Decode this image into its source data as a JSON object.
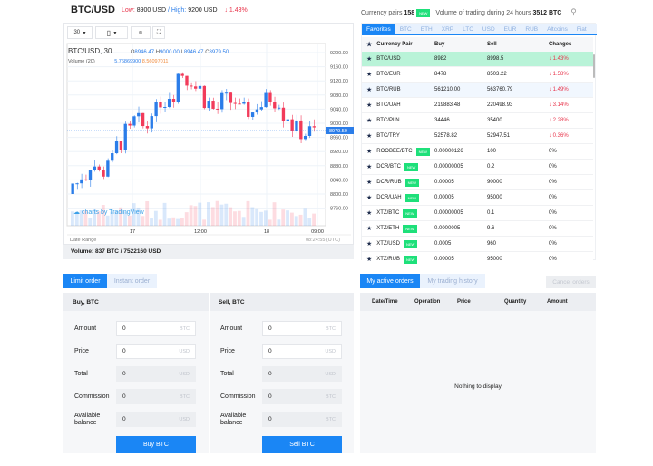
{
  "header": {
    "pair": "BTC/USD",
    "low_label": "Low:",
    "low": "8900 USD",
    "sep": "/",
    "high_label": "High:",
    "high": "9200 USD",
    "change": "↓ 1.43%"
  },
  "top_right": {
    "pairs_label": "Currency pairs",
    "pairs_count": "158",
    "new_badge": "NEW",
    "volume_label": "Volume of trading during 24 hours",
    "volume": "3512 BTC",
    "search_icon": "search-icon"
  },
  "chart": {
    "toolbar": {
      "interval": "30",
      "interval_arrow": "▾",
      "candle_icon": "candle-icon",
      "type_arrow": "▾",
      "indicators_icon": "indicators-icon",
      "fullscreen_icon": "fullscreen-icon"
    },
    "legend_title": "BTC/USD, 30",
    "ohlc": {
      "o_label": "O",
      "o": "8946.47",
      "h_label": "H",
      "h": "9000.00",
      "l_label": "L",
      "l": "8946.47",
      "c_label": "C",
      "c": "8979.50"
    },
    "volume_label": "Volume (20)",
    "volume_v1": "5.76869900",
    "volume_v2": "8.56097011",
    "price_ticks": [
      "9200.00",
      "9160.00",
      "9120.00",
      "9080.00",
      "9040.00",
      "9000.00",
      "8960.00",
      "8920.00",
      "8880.00",
      "8840.00",
      "8800.00",
      "8760.00"
    ],
    "current_price": "8979.50",
    "time_ticks": [
      "17",
      "12:00",
      "18",
      "09:00"
    ],
    "watermark": "charts by TradingView",
    "date_range": "Date Range",
    "clock": "08:24:55 (UTC)",
    "colors": {
      "up": "#2b7de9",
      "down": "#f23b5a"
    }
  },
  "volume_summary": "Volume: 837 BTC / 7522160 USD",
  "order_tabs": [
    "Limit order",
    "Instant order"
  ],
  "buy": {
    "title": "Buy, BTC",
    "fields": [
      {
        "label": "Amount",
        "value": "0",
        "unit": "BTC"
      },
      {
        "label": "Price",
        "value": "0",
        "unit": "USD"
      },
      {
        "label": "Total",
        "value": "0",
        "unit": "USD"
      },
      {
        "label": "Commission",
        "value": "0",
        "unit": "BTC"
      },
      {
        "label": "Available balance",
        "value": "0",
        "unit": "USD"
      }
    ],
    "button": "Buy BTC"
  },
  "sell": {
    "title": "Sell, BTC",
    "fields": [
      {
        "label": "Amount",
        "value": "0",
        "unit": "BTC"
      },
      {
        "label": "Price",
        "value": "0",
        "unit": "USD"
      },
      {
        "label": "Total",
        "value": "0",
        "unit": "USD"
      },
      {
        "label": "Commission",
        "value": "0",
        "unit": "BTC"
      },
      {
        "label": "Available balance",
        "value": "0",
        "unit": "BTC"
      }
    ],
    "button": "Sell BTC"
  },
  "market": {
    "tabs": [
      "Favorites",
      "BTC",
      "ETH",
      "XRP",
      "LTC",
      "USD",
      "EUR",
      "RUB",
      "Altcoins",
      "Fiat"
    ],
    "columns": [
      "Currency Pair",
      "Buy",
      "Sell",
      "Changes"
    ],
    "rows": [
      {
        "pair": "BTC/USD",
        "buy": "8982",
        "sell": "8998.5",
        "change": "↓ 1.43%",
        "neg": true,
        "new": false
      },
      {
        "pair": "BTC/EUR",
        "buy": "8478",
        "sell": "8503.22",
        "change": "↓ 1.58%",
        "neg": true,
        "new": false
      },
      {
        "pair": "BTC/RUB",
        "buy": "561210.00",
        "sell": "563760.79",
        "change": "↓ 1.49%",
        "neg": true,
        "new": false
      },
      {
        "pair": "BTC/UAH",
        "buy": "219883.48",
        "sell": "220498.93",
        "change": "↓ 3.14%",
        "neg": true,
        "new": false
      },
      {
        "pair": "BTC/PLN",
        "buy": "34446",
        "sell": "35400",
        "change": "↓ 2.28%",
        "neg": true,
        "new": false
      },
      {
        "pair": "BTC/TRY",
        "buy": "52578.82",
        "sell": "52947.51",
        "change": "↓ 0.36%",
        "neg": true,
        "new": false
      },
      {
        "pair": "ROOBEE/BTC",
        "buy": "0.00000126",
        "sell": "100",
        "change": "0%",
        "neg": false,
        "new": true
      },
      {
        "pair": "DCR/BTC",
        "buy": "0.00000005",
        "sell": "0.2",
        "change": "0%",
        "neg": false,
        "new": true
      },
      {
        "pair": "DCR/RUB",
        "buy": "0.00005",
        "sell": "90000",
        "change": "0%",
        "neg": false,
        "new": true
      },
      {
        "pair": "DCR/UAH",
        "buy": "0.00005",
        "sell": "95000",
        "change": "0%",
        "neg": false,
        "new": true
      },
      {
        "pair": "XTZ/BTC",
        "buy": "0.00000005",
        "sell": "0.1",
        "change": "0%",
        "neg": false,
        "new": true
      },
      {
        "pair": "XTZ/ETH",
        "buy": "0.0000005",
        "sell": "9.6",
        "change": "0%",
        "neg": false,
        "new": true
      },
      {
        "pair": "XTZ/USD",
        "buy": "0.0005",
        "sell": "960",
        "change": "0%",
        "neg": false,
        "new": true
      },
      {
        "pair": "XTZ/RUB",
        "buy": "0.00005",
        "sell": "95000",
        "change": "0%",
        "neg": false,
        "new": true
      }
    ]
  },
  "orders": {
    "tabs": [
      "My active orders",
      "My trading history"
    ],
    "cancel": "Cancel orders",
    "columns": [
      "Date/Time",
      "Operation",
      "Price",
      "Quantity",
      "Amount"
    ],
    "empty": "Nothing to display"
  }
}
